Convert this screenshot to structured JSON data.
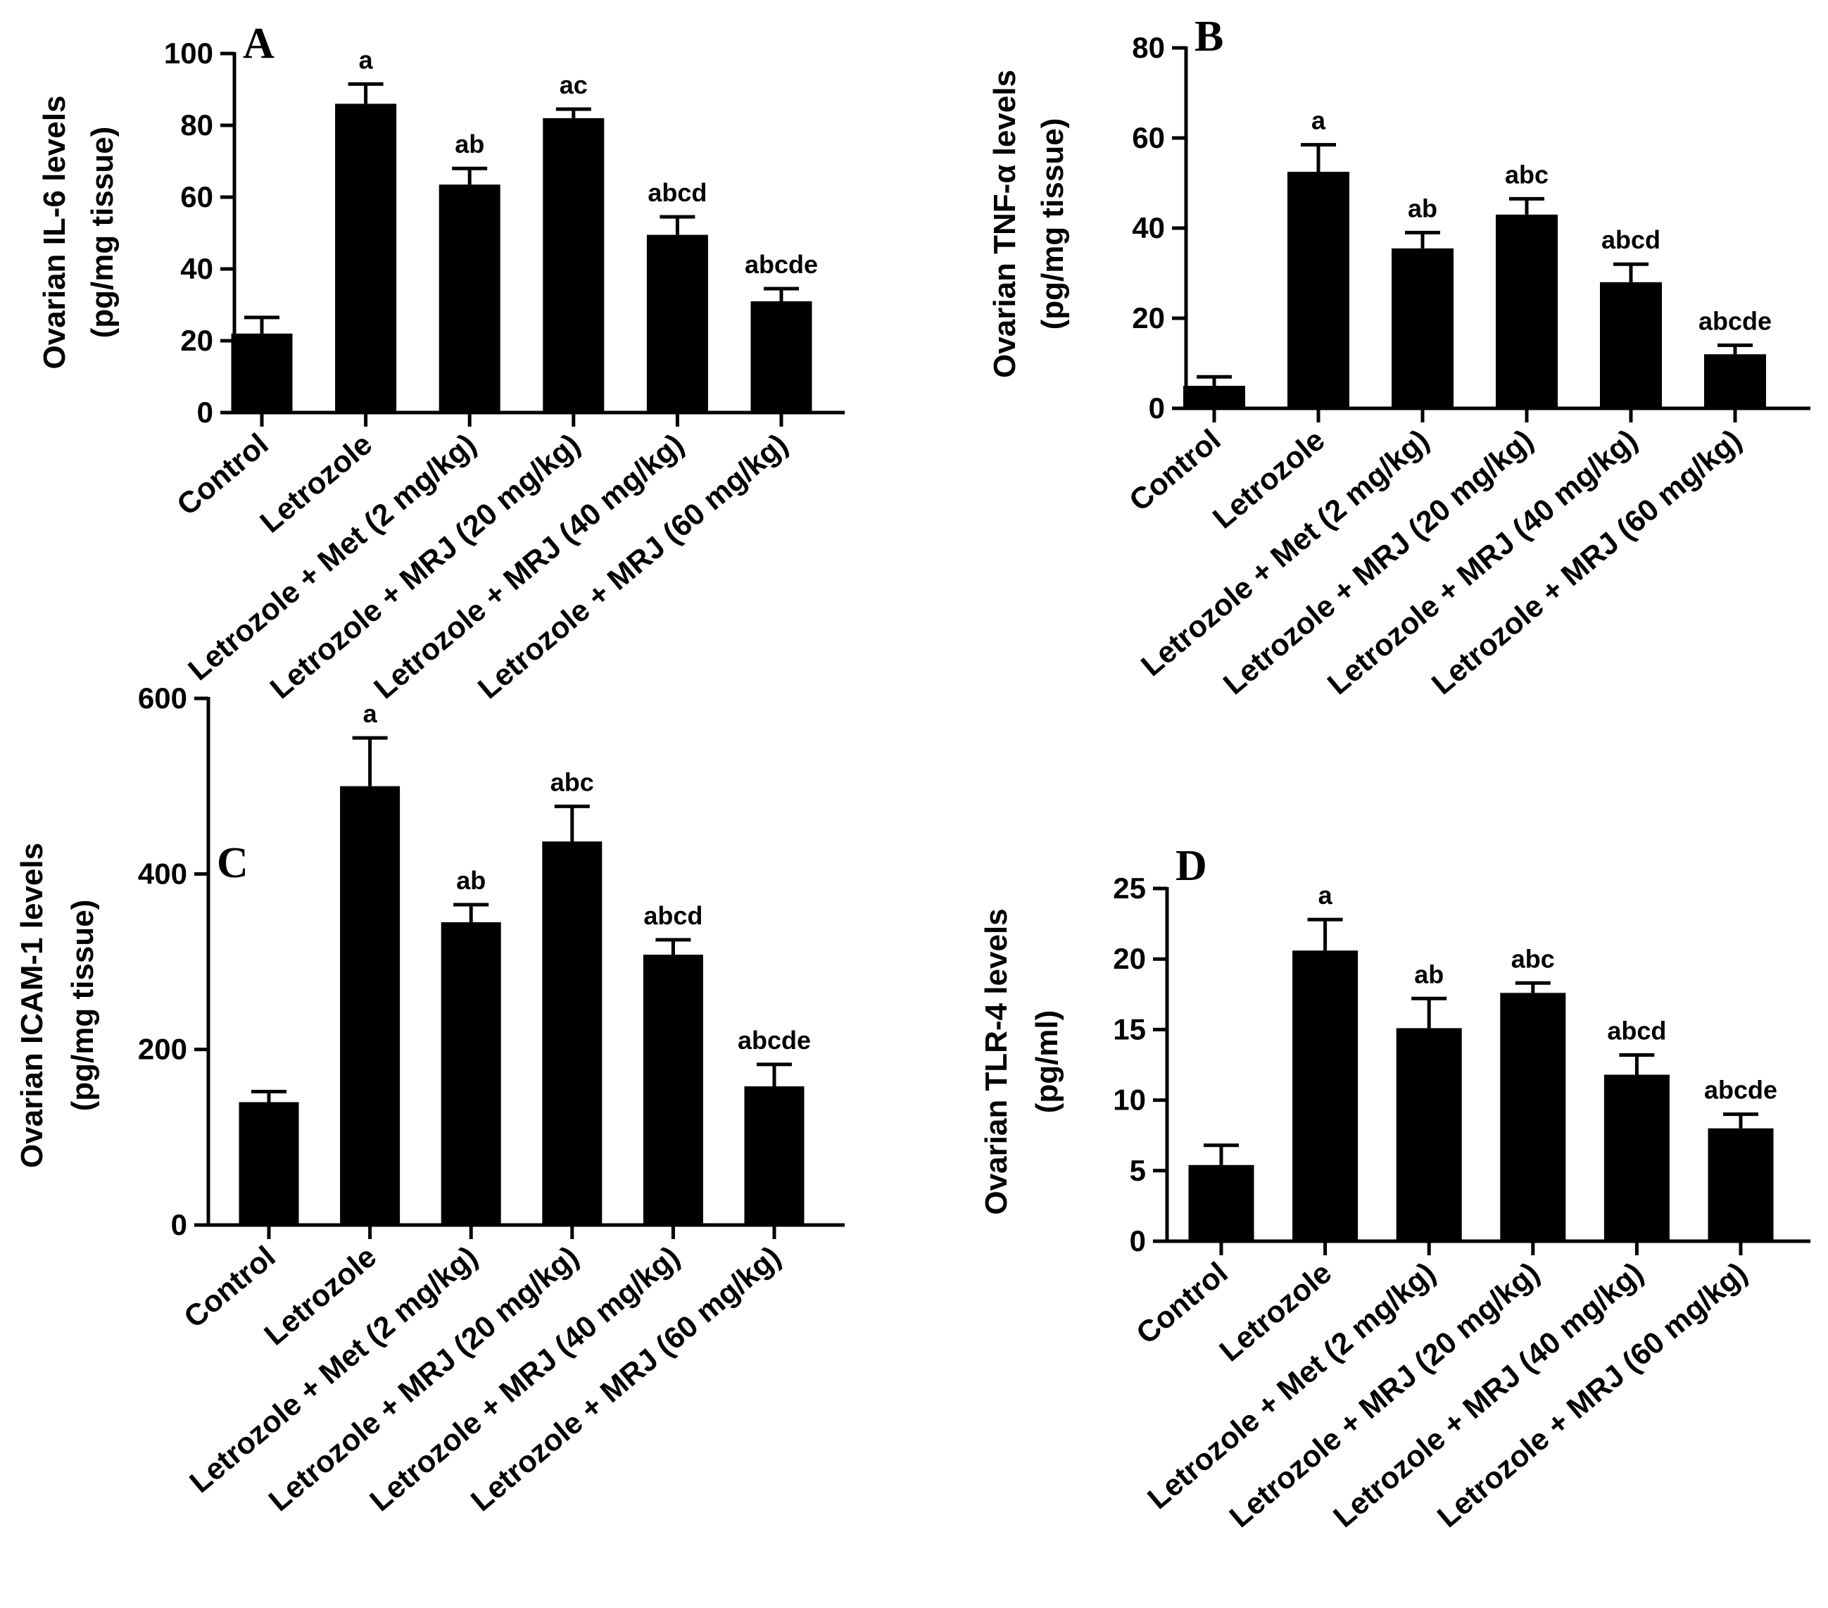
{
  "figure": {
    "ink_color": "#000000",
    "bar_color": "#000000"
  },
  "chart_data": [
    {
      "type": "bar",
      "panel_label": "A",
      "ylabel_line1": "Ovarian IL-6 levels",
      "ylabel_line2": "(pg/mg tissue)",
      "categories": [
        "Control",
        "Letrozole",
        "Letrozole + Met (2 mg/kg)",
        "Letrozole + MRJ (20 mg/kg)",
        "Letrozole + MRJ (40 mg/kg)",
        "Letrozole + MRJ (60 mg/kg)"
      ],
      "values": [
        22,
        86,
        63.5,
        82,
        49.5,
        31
      ],
      "errors": [
        4.5,
        5.5,
        4.5,
        2.5,
        5,
        3.5
      ],
      "significance": [
        "",
        "a",
        "ab",
        "ac",
        "abcd",
        "abcde"
      ],
      "ylim": [
        0,
        100
      ],
      "yticks": [
        0,
        20,
        40,
        60,
        80,
        100
      ]
    },
    {
      "type": "bar",
      "panel_label": "B",
      "ylabel_line1": "Ovarian TNF-α levels",
      "ylabel_line2": "(pg/mg tissue)",
      "categories": [
        "Control",
        "Letrozole",
        "Letrozole + Met (2 mg/kg)",
        "Letrozole + MRJ (20 mg/kg)",
        "Letrozole + MRJ (40 mg/kg)",
        "Letrozole + MRJ (60 mg/kg)"
      ],
      "values": [
        5,
        52.5,
        35.5,
        43,
        28,
        12
      ],
      "errors": [
        2,
        6,
        3.5,
        3.5,
        4,
        2
      ],
      "significance": [
        "",
        "a",
        "ab",
        "abc",
        "abcd",
        "abcde"
      ],
      "ylim": [
        0,
        80
      ],
      "yticks": [
        0,
        20,
        40,
        60,
        80
      ]
    },
    {
      "type": "bar",
      "panel_label": "C",
      "ylabel_line1": "Ovarian ICAM-1 levels",
      "ylabel_line2": "(pg/mg tissue)",
      "categories": [
        "Control",
        "Letrozole",
        "Letrozole + Met (2 mg/kg)",
        "Letrozole + MRJ (20 mg/kg)",
        "Letrozole + MRJ (40 mg/kg)",
        "Letrozole + MRJ (60 mg/kg)"
      ],
      "values": [
        140,
        500,
        345,
        437,
        308,
        158
      ],
      "errors": [
        12,
        55,
        20,
        40,
        17,
        25
      ],
      "significance": [
        "",
        "a",
        "ab",
        "abc",
        "abcd",
        "abcde"
      ],
      "ylim": [
        0,
        600
      ],
      "yticks": [
        0,
        200,
        400,
        600
      ]
    },
    {
      "type": "bar",
      "panel_label": "D",
      "ylabel_line1": "Ovarian TLR-4 levels",
      "ylabel_line2": "(pg/ml)",
      "categories": [
        "Control",
        "Letrozole",
        "Letrozole + Met (2 mg/kg)",
        "Letrozole + MRJ (20 mg/kg)",
        "Letrozole + MRJ (40 mg/kg)",
        "Letrozole + MRJ (60 mg/kg)"
      ],
      "values": [
        5.4,
        20.6,
        15.1,
        17.6,
        11.8,
        8.0
      ],
      "errors": [
        1.4,
        2.2,
        2.1,
        0.7,
        1.4,
        1.0
      ],
      "significance": [
        "",
        "a",
        "ab",
        "abc",
        "abcd",
        "abcde"
      ],
      "ylim": [
        0,
        25
      ],
      "yticks": [
        0,
        5,
        10,
        15,
        20,
        25
      ]
    }
  ]
}
